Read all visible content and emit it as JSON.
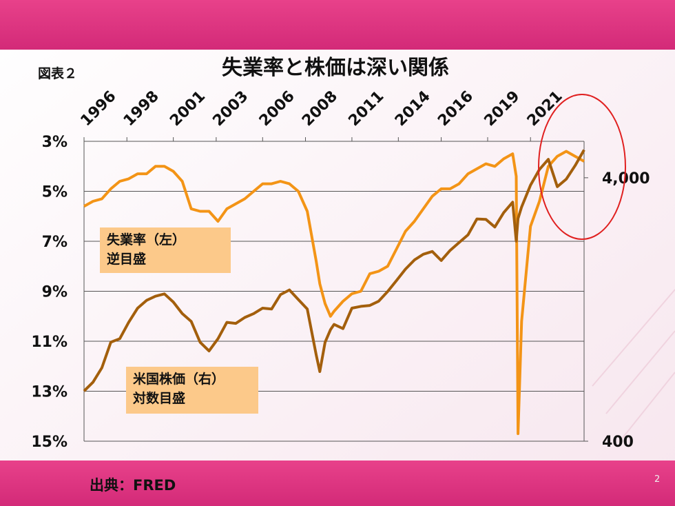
{
  "figure_label": "図表２",
  "source": "出典：FRED",
  "page_number": "2",
  "chart_data": {
    "type": "line",
    "title": "失業率と株価は深い関係",
    "x": [
      1996.0,
      1996.5,
      1997.0,
      1997.5,
      1998.0,
      1998.5,
      1999.0,
      1999.5,
      2000.0,
      2000.5,
      2001.0,
      2001.5,
      2002.0,
      2002.5,
      2003.0,
      2003.5,
      2004.0,
      2004.5,
      2005.0,
      2005.5,
      2006.0,
      2006.5,
      2007.0,
      2007.5,
      2008.0,
      2008.5,
      2009.0,
      2009.2,
      2009.5,
      2009.8,
      2010.0,
      2010.5,
      2011.0,
      2011.5,
      2012.0,
      2012.5,
      2013.0,
      2013.5,
      2014.0,
      2014.5,
      2015.0,
      2015.5,
      2016.0,
      2016.5,
      2017.0,
      2017.5,
      2018.0,
      2018.5,
      2019.0,
      2019.5,
      2020.0,
      2020.2,
      2020.3,
      2020.5,
      2021.0,
      2021.5,
      2022.0,
      2022.5,
      2023.0,
      2023.5,
      2024.0
    ],
    "series": [
      {
        "color": "#f39416",
        "values": [
          5.6,
          5.4,
          5.3,
          4.9,
          4.6,
          4.5,
          4.3,
          4.3,
          4.0,
          4.0,
          4.2,
          4.6,
          5.7,
          5.8,
          5.8,
          6.2,
          5.7,
          5.5,
          5.3,
          5.0,
          4.7,
          4.7,
          4.6,
          4.7,
          5.0,
          5.8,
          7.8,
          8.7,
          9.5,
          10.0,
          9.8,
          9.4,
          9.1,
          9.0,
          8.3,
          8.2,
          8.0,
          7.3,
          6.6,
          6.2,
          5.7,
          5.2,
          4.9,
          4.9,
          4.7,
          4.3,
          4.1,
          3.9,
          4.0,
          3.7,
          3.5,
          4.4,
          14.7,
          10.2,
          6.4,
          5.4,
          4.0,
          3.6,
          3.4,
          3.6,
          3.8
        ]
      },
      {
        "color": "#a35f0c",
        "axis": "y2",
        "values": [
          620,
          670,
          760,
          950,
          980,
          1130,
          1280,
          1370,
          1420,
          1450,
          1350,
          1220,
          1140,
          950,
          880,
          980,
          1130,
          1120,
          1180,
          1220,
          1280,
          1270,
          1440,
          1500,
          1380,
          1270,
          850,
          735,
          950,
          1060,
          1110,
          1070,
          1280,
          1300,
          1310,
          1360,
          1480,
          1630,
          1800,
          1950,
          2050,
          2100,
          1940,
          2120,
          2270,
          2430,
          2790,
          2780,
          2600,
          2950,
          3230,
          2300,
          2800,
          3100,
          3750,
          4300,
          4700,
          3700,
          3950,
          4450,
          5100
        ]
      }
    ],
    "xlim": [
      1996,
      2024
    ],
    "xticks": [
      {
        "value": 1996,
        "label": "1996"
      },
      {
        "value": 1998.4,
        "label": "1998"
      },
      {
        "value": 2001,
        "label": "2001"
      },
      {
        "value": 2003.4,
        "label": "2003"
      },
      {
        "value": 2006,
        "label": "2006"
      },
      {
        "value": 2008.4,
        "label": "2008"
      },
      {
        "value": 2011,
        "label": "2011"
      },
      {
        "value": 2013.6,
        "label": "2014"
      },
      {
        "value": 2016,
        "label": "2016"
      },
      {
        "value": 2018.6,
        "label": "2019"
      },
      {
        "value": 2021,
        "label": "2021"
      }
    ],
    "ylim": [
      15,
      3
    ],
    "yticks": [
      {
        "value": 3,
        "label": "3%"
      },
      {
        "value": 5,
        "label": "5%"
      },
      {
        "value": 7,
        "label": "7%"
      },
      {
        "value": 9,
        "label": "9%"
      },
      {
        "value": 11,
        "label": "11%"
      },
      {
        "value": 13,
        "label": "13%"
      },
      {
        "value": 15,
        "label": "15%"
      }
    ],
    "y2lim": [
      400,
      5500
    ],
    "y2ticks": [
      400,
      {
        "value": 4000,
        "label": "4,000"
      }
    ],
    "y2_scale": "log",
    "grid": true,
    "annotations": [
      [
        "失業率（左）",
        "逆目盛"
      ],
      [
        "米国株価（右）",
        "対数目盛"
      ]
    ],
    "highlight_color": "#e02020"
  }
}
